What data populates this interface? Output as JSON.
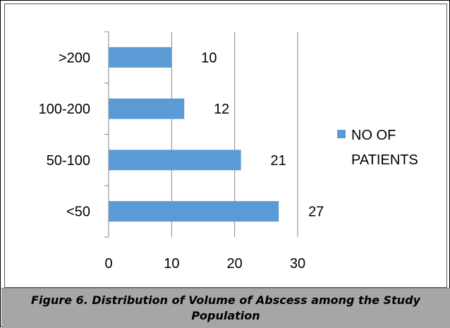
{
  "caption": "Figure 6. Distribution of Volume of Abscess among the Study Population",
  "colors": {
    "bar": "#5b9bd5",
    "grid": "#868686",
    "axis": "#868686"
  },
  "chart_data": {
    "type": "bar",
    "orientation": "horizontal",
    "categories": [
      ">200",
      "100-200",
      "50-100",
      "<50"
    ],
    "series": [
      {
        "name": "NO OF PATIENTS",
        "values": [
          10,
          12,
          21,
          27
        ]
      }
    ],
    "data_labels": [
      "10",
      "12",
      "21",
      "27"
    ],
    "xticks": [
      "0",
      "10",
      "20",
      "30"
    ],
    "xlim": [
      0,
      30
    ],
    "grid": true,
    "legend_position": "right"
  }
}
